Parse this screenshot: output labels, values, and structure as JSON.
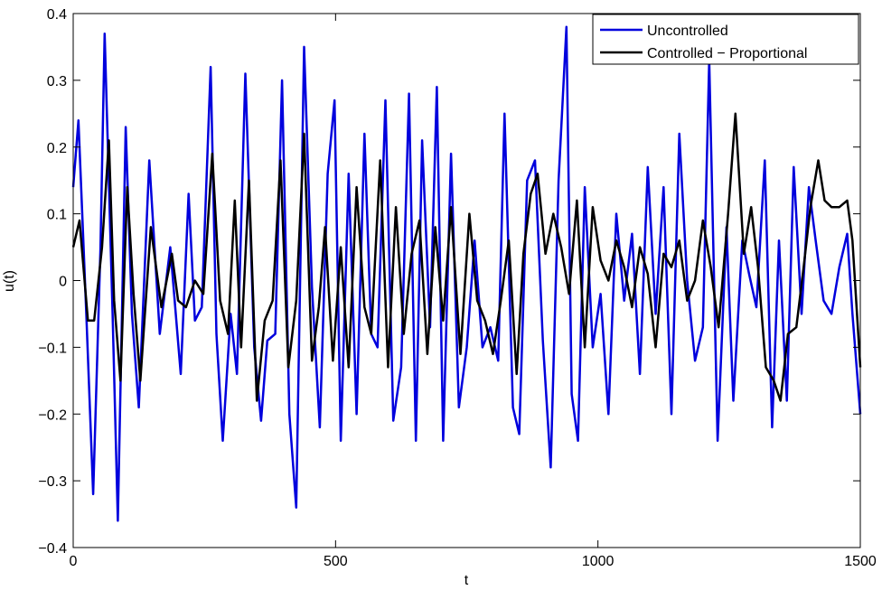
{
  "chart_data": {
    "type": "line",
    "title": "",
    "xlabel": "t",
    "ylabel": "u(t)",
    "xlim": [
      0,
      1500
    ],
    "ylim": [
      -0.4,
      0.4
    ],
    "xticks": [
      0,
      500,
      1000,
      1500
    ],
    "xtick_labels": [
      "0",
      "500",
      "1000",
      "1500"
    ],
    "yticks": [
      -0.4,
      -0.3,
      -0.2,
      -0.1,
      0,
      0.1,
      0.2,
      0.3,
      0.4
    ],
    "ytick_labels": [
      "−0.4",
      "−0.3",
      "−0.2",
      "−0.1",
      "0",
      "0.1",
      "0.2",
      "0.3",
      "0.4"
    ],
    "grid": false,
    "legend_position": "top-right",
    "series": [
      {
        "name": "Uncontrolled",
        "color": "#0000dd",
        "x": [
          0,
          10,
          25,
          38,
          52,
          60,
          75,
          85,
          100,
          112,
          125,
          145,
          165,
          185,
          205,
          220,
          232,
          245,
          262,
          273,
          285,
          300,
          312,
          328,
          345,
          358,
          370,
          385,
          398,
          412,
          425,
          440,
          455,
          470,
          485,
          498,
          510,
          525,
          540,
          555,
          568,
          580,
          595,
          610,
          625,
          640,
          653,
          665,
          680,
          693,
          705,
          720,
          735,
          750,
          765,
          780,
          795,
          810,
          822,
          838,
          850,
          865,
          880,
          895,
          910,
          925,
          940,
          950,
          962,
          975,
          990,
          1005,
          1020,
          1035,
          1050,
          1065,
          1080,
          1095,
          1110,
          1125,
          1140,
          1155,
          1170,
          1185,
          1200,
          1212,
          1228,
          1245,
          1258,
          1275,
          1288,
          1302,
          1318,
          1332,
          1345,
          1360,
          1373,
          1388,
          1402,
          1415,
          1430,
          1445,
          1460,
          1475,
          1485,
          1500
        ],
        "y": [
          0.14,
          0.24,
          -0.05,
          -0.32,
          0.05,
          0.37,
          -0.05,
          -0.36,
          0.23,
          -0.05,
          -0.19,
          0.18,
          -0.08,
          0.05,
          -0.14,
          0.13,
          -0.06,
          -0.04,
          0.32,
          -0.08,
          -0.24,
          -0.05,
          -0.14,
          0.31,
          -0.1,
          -0.21,
          -0.09,
          -0.08,
          0.3,
          -0.2,
          -0.34,
          0.35,
          -0.01,
          -0.22,
          0.16,
          0.27,
          -0.24,
          0.16,
          -0.2,
          0.22,
          -0.08,
          -0.1,
          0.27,
          -0.21,
          -0.13,
          0.28,
          -0.24,
          0.21,
          -0.07,
          0.29,
          -0.24,
          0.19,
          -0.19,
          -0.1,
          0.06,
          -0.1,
          -0.07,
          -0.12,
          0.25,
          -0.19,
          -0.23,
          0.15,
          0.18,
          -0.09,
          -0.28,
          0.15,
          0.38,
          -0.17,
          -0.24,
          0.14,
          -0.1,
          -0.02,
          -0.2,
          0.1,
          -0.03,
          0.07,
          -0.14,
          0.17,
          -0.05,
          0.14,
          -0.2,
          0.22,
          0.0,
          -0.12,
          -0.07,
          0.33,
          -0.24,
          0.08,
          -0.18,
          0.06,
          0.01,
          -0.04,
          0.18,
          -0.22,
          0.06,
          -0.18,
          0.17,
          -0.05,
          0.14,
          0.06,
          -0.03,
          -0.05,
          0.02,
          0.07,
          -0.05,
          -0.2
        ]
      },
      {
        "name": "Controlled − Proportional",
        "color": "#000000",
        "x": [
          0,
          12,
          28,
          40,
          55,
          68,
          78,
          90,
          103,
          115,
          128,
          148,
          168,
          188,
          200,
          215,
          232,
          248,
          265,
          280,
          295,
          308,
          320,
          335,
          350,
          365,
          380,
          395,
          410,
          425,
          440,
          455,
          468,
          480,
          495,
          510,
          525,
          540,
          555,
          568,
          585,
          600,
          615,
          630,
          645,
          660,
          675,
          690,
          705,
          720,
          738,
          755,
          770,
          785,
          800,
          815,
          830,
          845,
          858,
          872,
          885,
          900,
          915,
          930,
          945,
          960,
          975,
          990,
          1005,
          1020,
          1035,
          1050,
          1065,
          1080,
          1095,
          1110,
          1125,
          1140,
          1155,
          1170,
          1185,
          1200,
          1215,
          1230,
          1248,
          1262,
          1278,
          1292,
          1305,
          1320,
          1335,
          1348,
          1362,
          1378,
          1392,
          1405,
          1420,
          1432,
          1445,
          1460,
          1475,
          1485,
          1500
        ],
        "y": [
          0.05,
          0.09,
          -0.06,
          -0.06,
          0.05,
          0.21,
          -0.03,
          -0.15,
          0.14,
          -0.02,
          -0.15,
          0.08,
          -0.04,
          0.04,
          -0.03,
          -0.04,
          0.0,
          -0.02,
          0.19,
          -0.03,
          -0.08,
          0.12,
          -0.1,
          0.15,
          -0.18,
          -0.06,
          -0.03,
          0.18,
          -0.13,
          -0.03,
          0.22,
          -0.12,
          -0.04,
          0.08,
          -0.12,
          0.05,
          -0.13,
          0.14,
          -0.04,
          -0.08,
          0.18,
          -0.13,
          0.11,
          -0.08,
          0.04,
          0.09,
          -0.11,
          0.08,
          -0.06,
          0.11,
          -0.11,
          0.1,
          -0.03,
          -0.06,
          -0.11,
          -0.03,
          0.06,
          -0.14,
          0.04,
          0.13,
          0.16,
          0.04,
          0.1,
          0.05,
          -0.02,
          0.12,
          -0.1,
          0.11,
          0.03,
          0.0,
          0.06,
          0.02,
          -0.04,
          0.05,
          0.01,
          -0.1,
          0.04,
          0.02,
          0.06,
          -0.03,
          0.0,
          0.09,
          0.02,
          -0.07,
          0.1,
          0.25,
          0.04,
          0.11,
          0.02,
          -0.13,
          -0.15,
          -0.18,
          -0.08,
          -0.07,
          0.02,
          0.11,
          0.18,
          0.12,
          0.11,
          0.11,
          0.12,
          0.06,
          -0.13
        ]
      }
    ]
  }
}
